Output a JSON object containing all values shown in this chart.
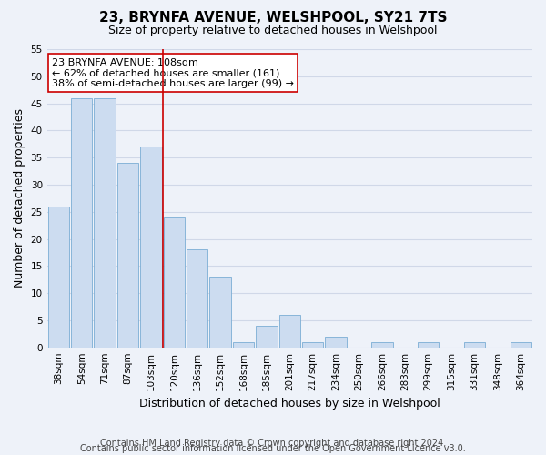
{
  "title": "23, BRYNFA AVENUE, WELSHPOOL, SY21 7TS",
  "subtitle": "Size of property relative to detached houses in Welshpool",
  "xlabel": "Distribution of detached houses by size in Welshpool",
  "ylabel": "Number of detached properties",
  "bar_labels": [
    "38sqm",
    "54sqm",
    "71sqm",
    "87sqm",
    "103sqm",
    "120sqm",
    "136sqm",
    "152sqm",
    "168sqm",
    "185sqm",
    "201sqm",
    "217sqm",
    "234sqm",
    "250sqm",
    "266sqm",
    "283sqm",
    "299sqm",
    "315sqm",
    "331sqm",
    "348sqm",
    "364sqm"
  ],
  "bar_values": [
    26,
    46,
    46,
    34,
    37,
    24,
    18,
    13,
    1,
    4,
    6,
    1,
    2,
    0,
    1,
    0,
    1,
    0,
    1,
    0,
    1
  ],
  "bar_color": "#ccdcf0",
  "bar_edge_color": "#7badd4",
  "vline_x": 4.5,
  "vline_color": "#cc0000",
  "annotation_title": "23 BRYNFA AVENUE: 108sqm",
  "annotation_line1": "← 62% of detached houses are smaller (161)",
  "annotation_line2": "38% of semi-detached houses are larger (99) →",
  "annotation_box_color": "white",
  "annotation_box_edge": "#cc0000",
  "ylim": [
    0,
    55
  ],
  "yticks": [
    0,
    5,
    10,
    15,
    20,
    25,
    30,
    35,
    40,
    45,
    50,
    55
  ],
  "footnote1": "Contains HM Land Registry data © Crown copyright and database right 2024.",
  "footnote2": "Contains public sector information licensed under the Open Government Licence v3.0.",
  "bg_color": "#eef2f9",
  "plot_bg_color": "#eef2f9",
  "grid_color": "#d0d8e8",
  "title_fontsize": 11,
  "subtitle_fontsize": 9,
  "axis_label_fontsize": 9,
  "tick_fontsize": 7.5,
  "footnote_fontsize": 7
}
